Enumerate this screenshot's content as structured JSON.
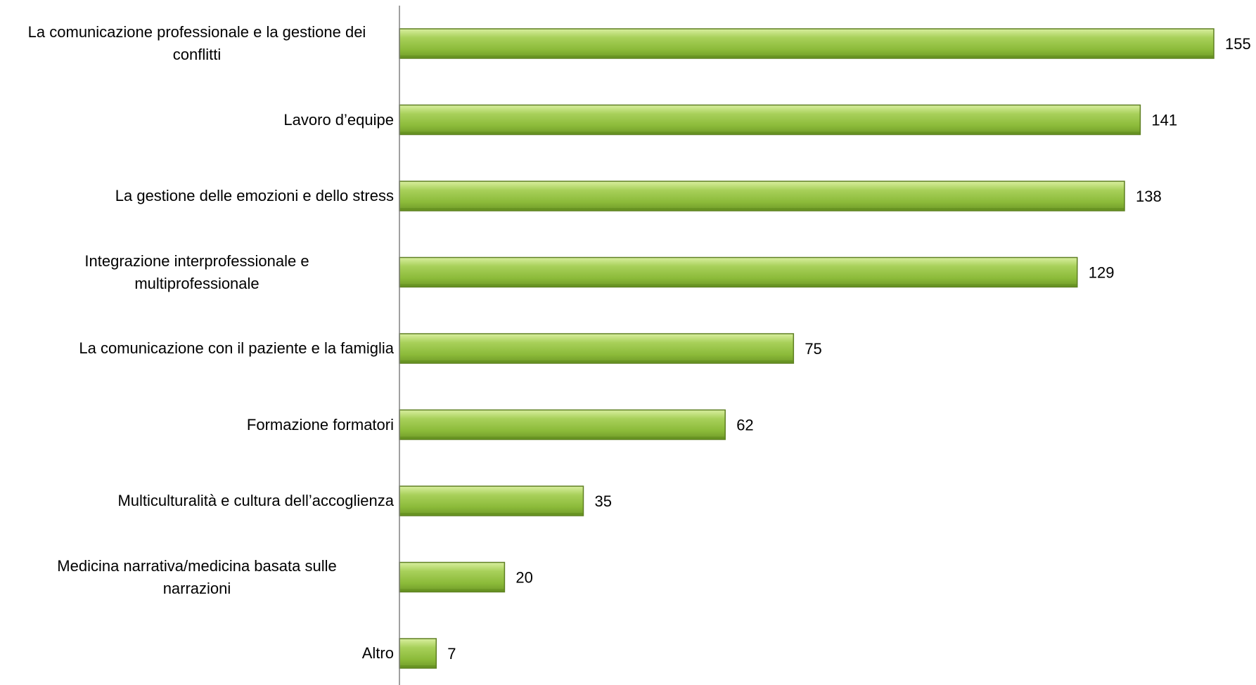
{
  "chart_data": {
    "type": "bar",
    "orientation": "horizontal",
    "title": "",
    "xlabel": "",
    "ylabel": "",
    "xlim": [
      0,
      155
    ],
    "grid": false,
    "legend": "none",
    "bar_color": "#8DB83A",
    "bar_highlight": "#C9E38A",
    "bar_border": "#5E7F22",
    "categories": [
      [
        "La comunicazione professionale e la gestione dei",
        "conflitti"
      ],
      [
        "Lavoro d’equipe"
      ],
      [
        "La gestione delle emozioni e dello stress"
      ],
      [
        "Integrazione interprofessionale e",
        "multiprofessionale"
      ],
      [
        "La comunicazione con il paziente e la famiglia"
      ],
      [
        "Formazione formatori"
      ],
      [
        "Multiculturalità e cultura dell’accoglienza"
      ],
      [
        "Medicina narrativa/medicina basata sulle",
        "narrazioni"
      ],
      [
        "Altro"
      ]
    ],
    "values": [
      155,
      141,
      138,
      129,
      75,
      62,
      35,
      20,
      7
    ],
    "value_labels": [
      "155",
      "141",
      "138",
      "129",
      "75",
      "62",
      "35",
      "20",
      "7"
    ]
  }
}
